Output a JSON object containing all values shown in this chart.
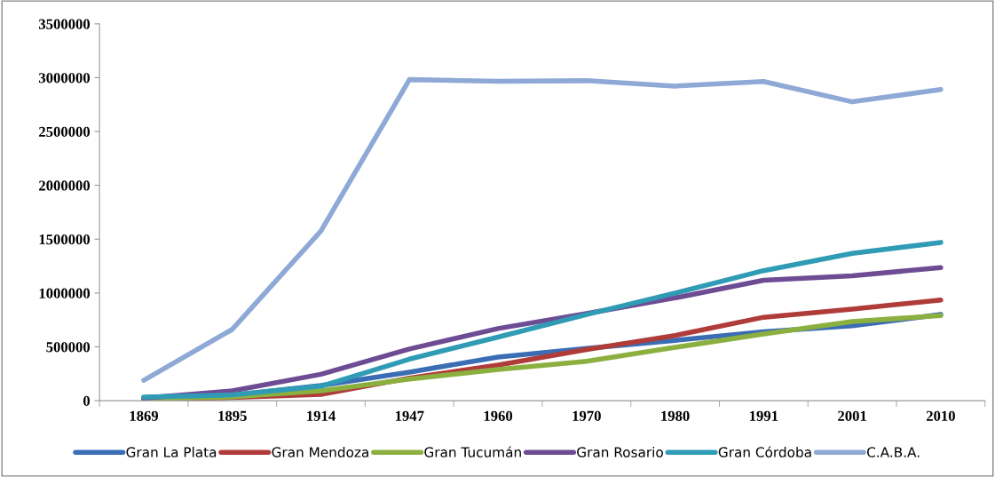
{
  "chart_data": {
    "type": "line",
    "categories": [
      "1869",
      "1895",
      "1914",
      "1947",
      "1960",
      "1970",
      "1980",
      "1991",
      "2001",
      "2010"
    ],
    "ylim": [
      0,
      3500000
    ],
    "yticks": [
      0,
      500000,
      1000000,
      1500000,
      2000000,
      2500000,
      3000000,
      3500000
    ],
    "grid": false,
    "legend": "bottom",
    "marker": "none",
    "line_style": "solid",
    "series": [
      {
        "name": "Gran La Plata",
        "color": "#3b6db4",
        "values": [
          20000,
          50000,
          140000,
          265000,
          405000,
          485000,
          560000,
          640000,
          695000,
          800000
        ]
      },
      {
        "name": "Gran Mendoza",
        "color": "#b03c3a",
        "values": [
          8000,
          29000,
          59000,
          210000,
          330000,
          475000,
          605000,
          775000,
          850000,
          935000
        ]
      },
      {
        "name": "Gran Tucumán",
        "color": "#8cb040",
        "values": [
          17000,
          35000,
          92000,
          200000,
          290000,
          365000,
          495000,
          620000,
          735000,
          790000
        ]
      },
      {
        "name": "Gran Rosario",
        "color": "#6d4c94",
        "values": [
          23000,
          91000,
          245000,
          480000,
          670000,
          810000,
          955000,
          1118000,
          1160000,
          1236000
        ]
      },
      {
        "name": "Gran Córdoba",
        "color": "#2f9bb5",
        "values": [
          34000,
          54000,
          134000,
          386000,
          590000,
          800000,
          1000000,
          1208000,
          1368000,
          1470000
        ]
      },
      {
        "name": "C.A.B.A.",
        "color": "#8fa9d6",
        "values": [
          190000,
          663000,
          1576000,
          2982000,
          2967000,
          2972000,
          2922000,
          2965000,
          2776000,
          2890000
        ]
      }
    ]
  }
}
